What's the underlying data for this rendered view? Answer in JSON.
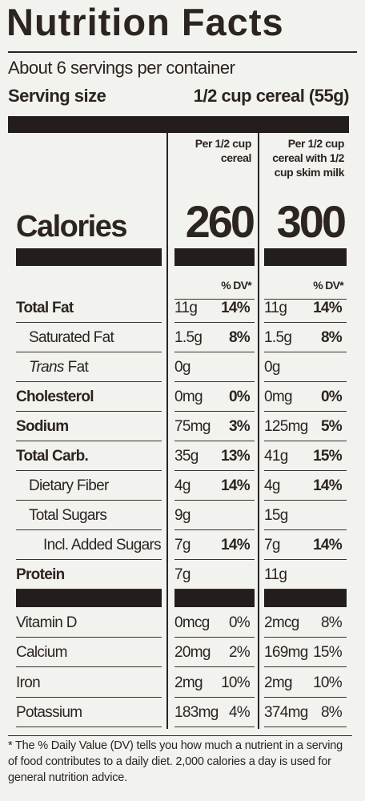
{
  "title": "Nutrition Facts",
  "servings": "About 6 servings per container",
  "serving_size": {
    "label": "Serving size",
    "value": "1/2 cup cereal (55g)"
  },
  "columns": [
    "Per 1/2 cup cereal",
    "Per 1/2 cup cereal with 1/2 cup skim milk"
  ],
  "calories": {
    "label": "Calories",
    "values": [
      "260",
      "300"
    ]
  },
  "dv_header": "% DV*",
  "nutrients": [
    {
      "name": "Total Fat",
      "per_serving": {
        "amount": "11g",
        "dv": "14%"
      },
      "with_milk": {
        "amount": "11g",
        "dv": "14%"
      }
    },
    {
      "name": "Saturated Fat",
      "per_serving": {
        "amount": "1.5g",
        "dv": "8%"
      },
      "with_milk": {
        "amount": "1.5g",
        "dv": "8%"
      }
    },
    {
      "name_italic": "Trans",
      "name": "Fat",
      "per_serving": {
        "amount": "0g"
      },
      "with_milk": {
        "amount": "0g"
      }
    },
    {
      "name": "Cholesterol",
      "per_serving": {
        "amount": "0mg",
        "dv": "0%"
      },
      "with_milk": {
        "amount": "0mg",
        "dv": "0%"
      }
    },
    {
      "name": "Sodium",
      "per_serving": {
        "amount": "75mg",
        "dv": "3%"
      },
      "with_milk": {
        "amount": "125mg",
        "dv": "5%"
      }
    },
    {
      "name": "Total Carb.",
      "per_serving": {
        "amount": "35g",
        "dv": "13%"
      },
      "with_milk": {
        "amount": "41g",
        "dv": "15%"
      }
    },
    {
      "name": "Dietary Fiber",
      "per_serving": {
        "amount": "4g",
        "dv": "14%"
      },
      "with_milk": {
        "amount": "4g",
        "dv": "14%"
      }
    },
    {
      "name": "Total Sugars",
      "per_serving": {
        "amount": "9g"
      },
      "with_milk": {
        "amount": "15g"
      }
    },
    {
      "name": "Incl. Added Sugars",
      "per_serving": {
        "amount": "7g",
        "dv": "14%"
      },
      "with_milk": {
        "amount": "7g",
        "dv": "14%"
      }
    },
    {
      "name": "Protein",
      "per_serving": {
        "amount": "7g"
      },
      "with_milk": {
        "amount": "11g"
      }
    }
  ],
  "vitamins": [
    {
      "name": "Vitamin D",
      "per_serving": {
        "amount": "0mcg",
        "dv": "0%"
      },
      "with_milk": {
        "amount": "2mcg",
        "dv": "8%"
      }
    },
    {
      "name": "Calcium",
      "per_serving": {
        "amount": "20mg",
        "dv": "2%"
      },
      "with_milk": {
        "amount": "169mg",
        "dv": "15%"
      }
    },
    {
      "name": "Iron",
      "per_serving": {
        "amount": "2mg",
        "dv": "10%"
      },
      "with_milk": {
        "amount": "2mg",
        "dv": "10%"
      }
    },
    {
      "name": "Potassium",
      "per_serving": {
        "amount": "183mg",
        "dv": "4%"
      },
      "with_milk": {
        "amount": "374mg",
        "dv": "8%"
      }
    }
  ],
  "footnote": "* The % Daily Value (DV) tells you how much a nutrient in a serving of food contributes to a daily diet. 2,000 calories a day is used for general nutrition advice."
}
